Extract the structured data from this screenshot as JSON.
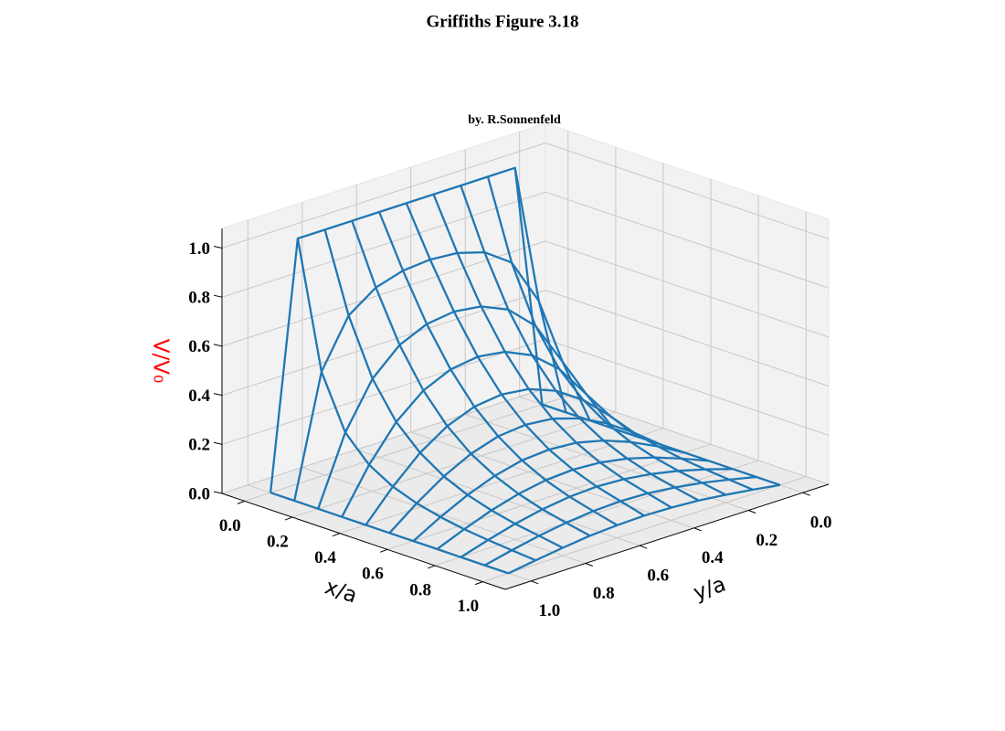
{
  "chart_data": {
    "type": "surface3d",
    "title": "Griffiths Figure 3.18",
    "subtitle": "by. R.Sonnenfeld",
    "xlabel": "x/a",
    "ylabel": "y/a",
    "zlabel": "V/V₀",
    "zlabel_color": "#ff0000",
    "color": "#1f77b4",
    "grid": true,
    "x": [
      0,
      0.1,
      0.2,
      0.3,
      0.4,
      0.5,
      0.6,
      0.7,
      0.8,
      0.9,
      1
    ],
    "y": [
      0,
      0.1,
      0.2,
      0.3,
      0.4,
      0.5,
      0.6,
      0.7,
      0.8,
      0.9,
      1
    ],
    "z": [
      [
        0,
        1,
        1,
        1,
        1,
        1,
        1,
        1,
        1,
        1,
        0
      ],
      [
        0,
        0.49,
        0.683,
        0.761,
        0.794,
        0.803,
        0.794,
        0.761,
        0.683,
        0.49,
        0
      ],
      [
        0,
        0.275,
        0.458,
        0.56,
        0.609,
        0.624,
        0.609,
        0.56,
        0.458,
        0.275,
        0
      ],
      [
        0,
        0.176,
        0.315,
        0.407,
        0.457,
        0.473,
        0.457,
        0.407,
        0.315,
        0.176,
        0
      ],
      [
        0,
        0.12,
        0.222,
        0.295,
        0.338,
        0.352,
        0.338,
        0.295,
        0.222,
        0.12,
        0
      ],
      [
        0,
        0.085,
        0.159,
        0.215,
        0.25,
        0.261,
        0.25,
        0.215,
        0.159,
        0.085,
        0
      ],
      [
        0,
        0.062,
        0.116,
        0.158,
        0.185,
        0.193,
        0.185,
        0.158,
        0.116,
        0.062,
        0
      ],
      [
        0,
        0.045,
        0.086,
        0.117,
        0.137,
        0.144,
        0.137,
        0.117,
        0.086,
        0.045,
        0
      ],
      [
        0,
        0.034,
        0.064,
        0.087,
        0.102,
        0.108,
        0.102,
        0.087,
        0.064,
        0.034,
        0
      ],
      [
        0,
        0.025,
        0.048,
        0.065,
        0.077,
        0.081,
        0.077,
        0.065,
        0.048,
        0.025,
        0
      ],
      [
        0,
        0.017,
        0.032,
        0.045,
        0.052,
        0.055,
        0.052,
        0.045,
        0.032,
        0.017,
        0
      ]
    ],
    "xlim": [
      0,
      1
    ],
    "ylim": [
      0,
      1
    ],
    "zlim": [
      0,
      1.08
    ],
    "xticks": [
      {
        "value": 0,
        "label": "0.0"
      },
      0.2,
      0.4,
      0.6,
      0.8,
      {
        "value": 1,
        "label": "1.0"
      }
    ],
    "yticks": [
      {
        "value": 0,
        "label": "0.0"
      },
      0.2,
      0.4,
      0.6,
      0.8,
      {
        "value": 1,
        "label": "1.0"
      }
    ],
    "zticks": [
      {
        "value": 0,
        "label": "0.0"
      },
      0.2,
      0.4,
      0.6,
      0.8,
      {
        "value": 1,
        "label": "1.0"
      }
    ]
  }
}
